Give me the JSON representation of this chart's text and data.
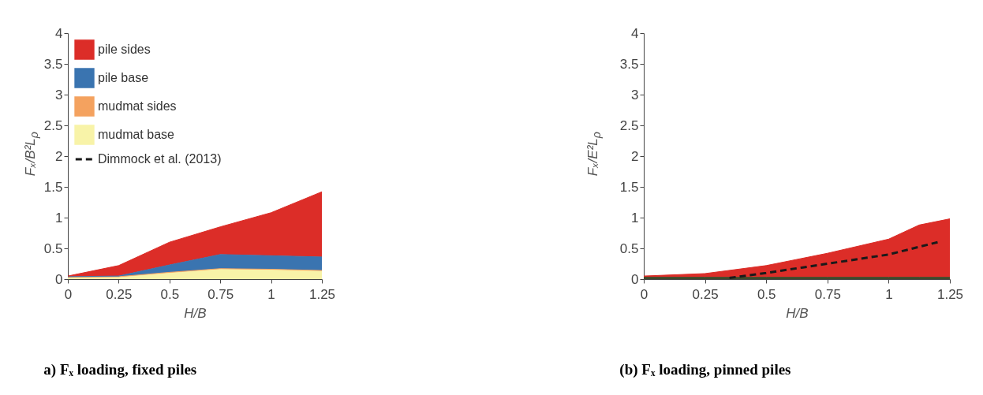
{
  "chart_data": [
    {
      "type": "area",
      "title": "a) Fₓ loading, fixed piles",
      "xlabel": "H/B",
      "ylabel": "Fₓ/B²L$_{ρ}$",
      "x": [
        0,
        0.25,
        0.5,
        0.75,
        1,
        1.25
      ],
      "xlim": [
        0,
        1.25
      ],
      "xticks": [
        0,
        0.25,
        0.5,
        0.75,
        1,
        1.25
      ],
      "ylim": [
        0,
        4
      ],
      "yticks": [
        0,
        0.5,
        1,
        1.5,
        2,
        2.5,
        3,
        3.5,
        4
      ],
      "stacked": true,
      "grid": false,
      "legend": "top left",
      "series": [
        {
          "name": "mudmat base",
          "color": "#f8f3a8",
          "values": [
            0.02,
            0.03,
            0.1,
            0.16,
            0.15,
            0.13
          ]
        },
        {
          "name": "mudmat sides",
          "color": "#f4a25f",
          "values": [
            0.01,
            0.01,
            0.01,
            0.01,
            0.01,
            0.01
          ]
        },
        {
          "name": "pile base",
          "color": "#3a74b0",
          "values": [
            0.01,
            0.01,
            0.12,
            0.23,
            0.22,
            0.22
          ]
        },
        {
          "name": "pile sides",
          "color": "#dc2d28",
          "values": [
            0.01,
            0.17,
            0.37,
            0.45,
            0.7,
            1.06
          ]
        },
        {
          "name": "Dimmock et al. (2013)",
          "type": "line",
          "line_style": "dashed",
          "color": "#1a1a1a",
          "values": [
            null,
            null,
            null,
            null,
            null,
            null
          ]
        }
      ]
    },
    {
      "type": "area",
      "title": "(b) Fₓ loading, pinned piles",
      "xlabel": "H/B",
      "ylabel": "Fₓ/E²L$_{ρ}$",
      "x": [
        0,
        0.25,
        0.5,
        0.75,
        1,
        1.125,
        1.25
      ],
      "xlim": [
        0,
        1.25
      ],
      "xticks": [
        0,
        0.25,
        0.5,
        0.75,
        1,
        1.25
      ],
      "ylim": [
        0,
        4
      ],
      "yticks": [
        0,
        0.5,
        1,
        1.5,
        2,
        2.5,
        3,
        3.5,
        4
      ],
      "stacked": true,
      "grid": false,
      "series": [
        {
          "color": "#3d4a2a",
          "values": [
            0.03,
            0.03,
            0.03,
            0.03,
            0.03,
            0.03,
            0.03
          ]
        },
        {
          "color": "#dc2d28",
          "values": [
            0.02,
            0.06,
            0.19,
            0.39,
            0.62,
            0.85,
            0.95
          ]
        },
        {
          "type": "line",
          "line_style": "dashed",
          "color": "#1a1a1a",
          "x": [
            0.35,
            0.5,
            0.75,
            1,
            1.2
          ],
          "values": [
            0.02,
            0.1,
            0.25,
            0.4,
            0.6
          ]
        }
      ]
    }
  ]
}
